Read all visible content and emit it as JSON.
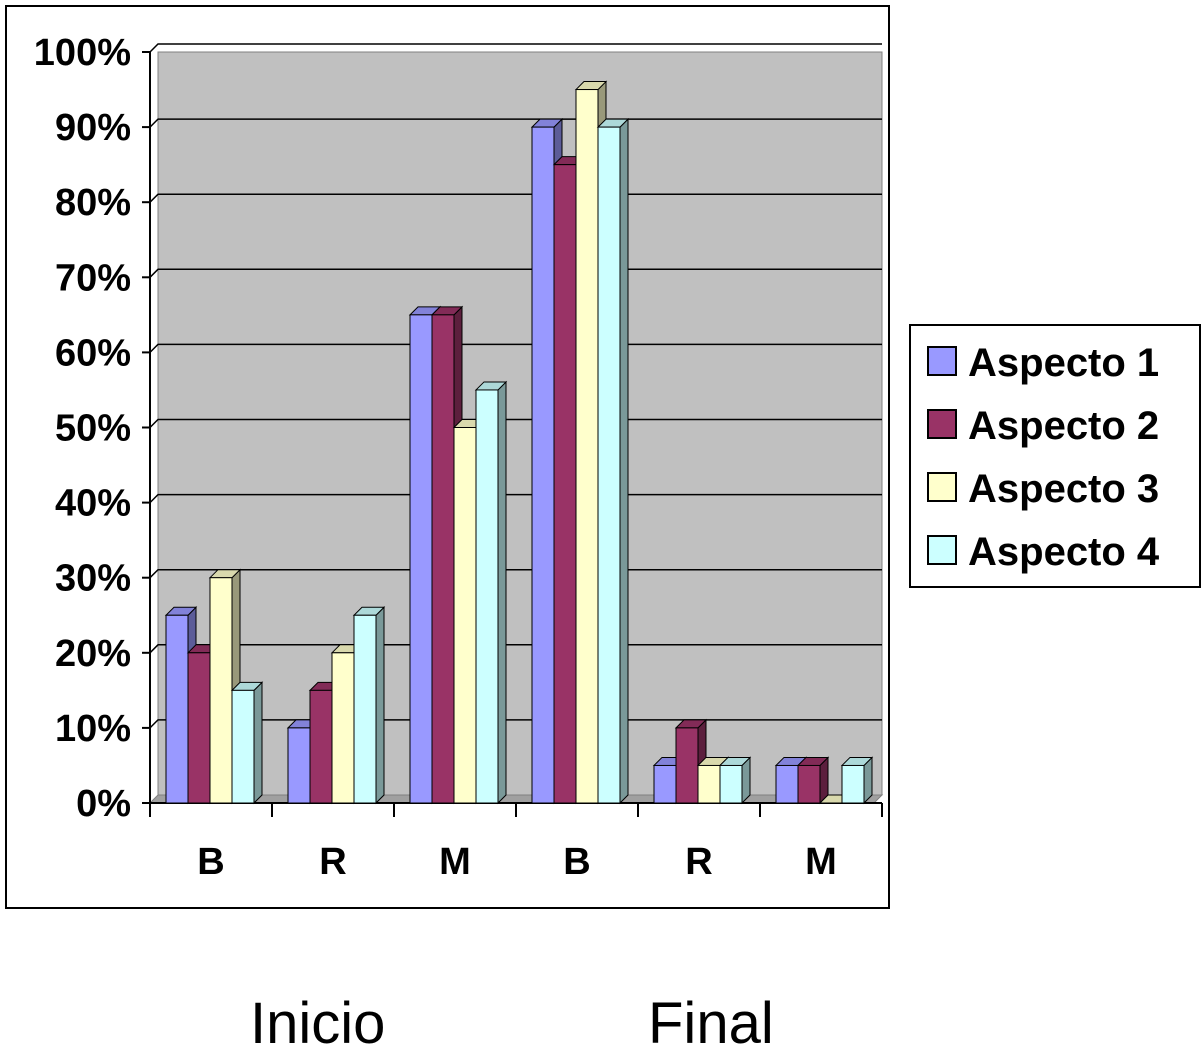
{
  "chart_data": {
    "type": "bar",
    "categories": [
      "B",
      "R",
      "M",
      "B",
      "R",
      "M"
    ],
    "groups": [
      "Inicio",
      "Final"
    ],
    "series": [
      {
        "name": "Aspecto 1",
        "color": "#9999ff",
        "values": [
          25,
          10,
          65,
          90,
          5,
          5
        ]
      },
      {
        "name": "Aspecto 2",
        "color": "#993366",
        "values": [
          20,
          15,
          65,
          85,
          10,
          5
        ]
      },
      {
        "name": "Aspecto 3",
        "color": "#ffffcc",
        "values": [
          30,
          20,
          50,
          95,
          5,
          0
        ]
      },
      {
        "name": "Aspecto 4",
        "color": "#ccffff",
        "values": [
          15,
          25,
          55,
          90,
          5,
          5
        ]
      }
    ],
    "ylim": [
      0,
      100
    ],
    "yticks": [
      "0%",
      "10%",
      "20%",
      "30%",
      "40%",
      "50%",
      "60%",
      "70%",
      "80%",
      "90%",
      "100%"
    ],
    "grid": true,
    "legend": "right",
    "wall_color": "#c0c0c0"
  }
}
